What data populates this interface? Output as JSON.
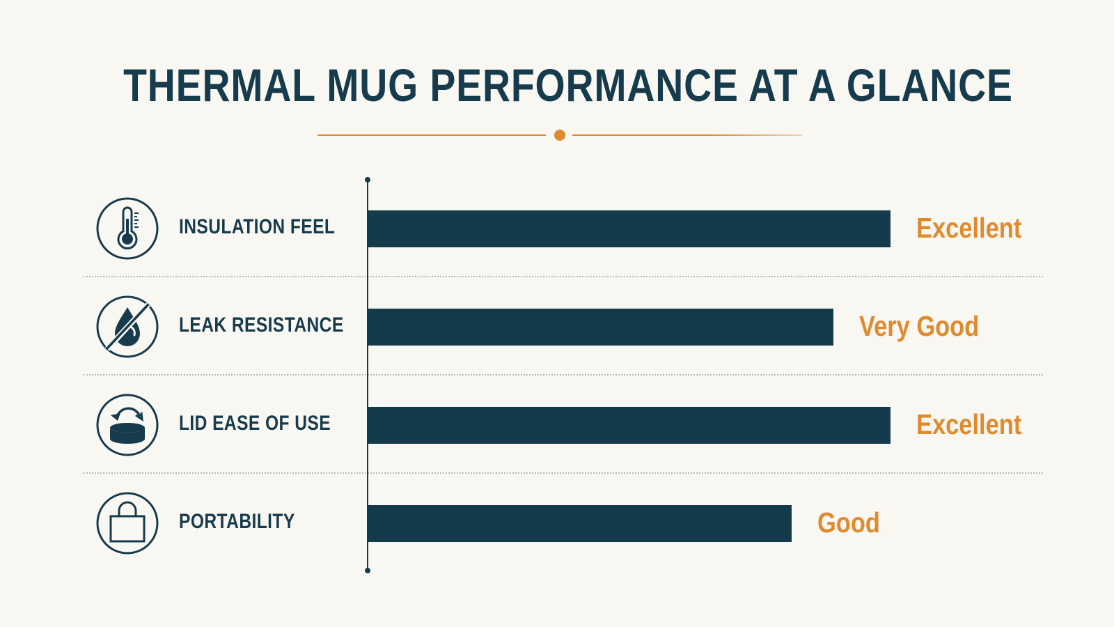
{
  "title": "THERMAL MUG PERFORMANCE AT A GLANCE",
  "colors": {
    "background": "#f9f7f2",
    "bar": "#143b4b",
    "text_dark": "#163b4c",
    "accent": "#e08a2e"
  },
  "chart_data": {
    "type": "bar",
    "orientation": "horizontal",
    "title": "THERMAL MUG PERFORMANCE AT A GLANCE",
    "categories": [
      "INSULATION FEEL",
      "LEAK RESISTANCE",
      "LID EASE OF USE",
      "PORTABILITY"
    ],
    "values": [
      1.0,
      0.89,
      1.0,
      0.81
    ],
    "value_labels": [
      "Excellent",
      "Very Good",
      "Excellent",
      "Good"
    ],
    "icons": [
      "thermometer-icon",
      "no-leak-drop-icon",
      "lid-rotate-icon",
      "bag-icon"
    ],
    "xlim": [
      0,
      1
    ],
    "grid": false
  }
}
